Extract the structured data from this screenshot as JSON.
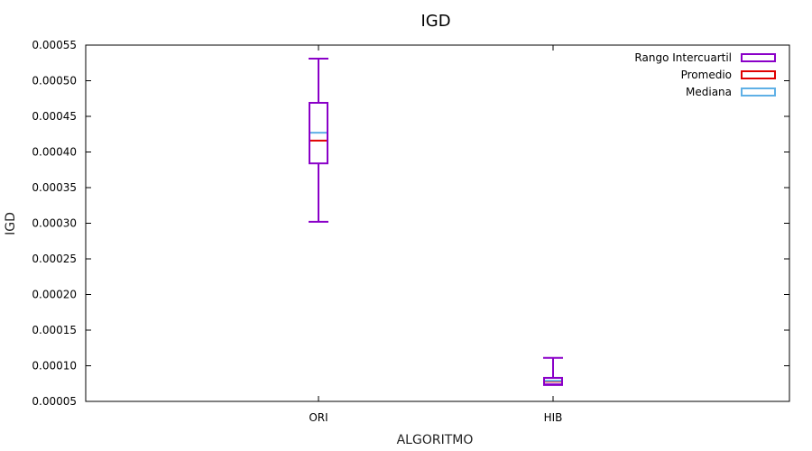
{
  "chart_data": {
    "type": "box",
    "title": "IGD",
    "xlabel": "ALGORITMO",
    "ylabel": "IGD",
    "categories": [
      "ORI",
      "HIB"
    ],
    "ylim": [
      5e-05,
      0.00055
    ],
    "yticks": [
      "0.00005",
      "0.00010",
      "0.00015",
      "0.00020",
      "0.00025",
      "0.00030",
      "0.00035",
      "0.00040",
      "0.00045",
      "0.00050",
      "0.00055"
    ],
    "grid": false,
    "legend_position": "top-right",
    "boxes": [
      {
        "category": "ORI",
        "min": 0.000302,
        "q1": 0.000384,
        "median": 0.000427,
        "mean": 0.000416,
        "q3": 0.000469,
        "max": 0.000531
      },
      {
        "category": "HIB",
        "min": 7.3e-05,
        "q1": 7.4e-05,
        "median": 7.9e-05,
        "mean": 7.8e-05,
        "q3": 8.3e-05,
        "max": 0.000111
      }
    ],
    "legend": [
      {
        "label": "Rango Intercuartil",
        "color": "#8a00c8"
      },
      {
        "label": "Promedio",
        "color": "#e00000"
      },
      {
        "label": "Mediana",
        "color": "#5fb0e6"
      }
    ]
  }
}
